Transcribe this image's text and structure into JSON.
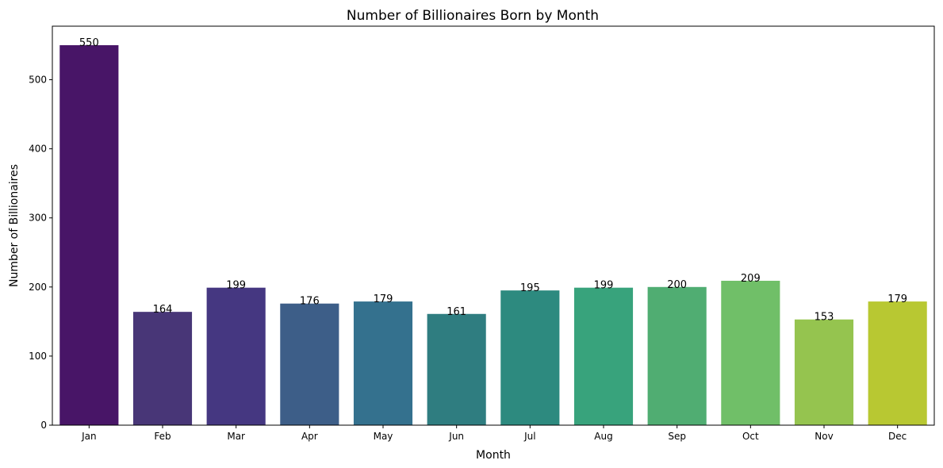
{
  "chart_data": {
    "type": "bar",
    "title": "Number of Billionaires Born by Month",
    "xlabel": "Month",
    "ylabel": "Number of Billionaires",
    "categories": [
      "Jan",
      "Feb",
      "Mar",
      "Apr",
      "May",
      "Jun",
      "Jul",
      "Aug",
      "Sep",
      "Oct",
      "Nov",
      "Dec"
    ],
    "values": [
      550,
      164,
      199,
      176,
      179,
      161,
      195,
      199,
      200,
      209,
      153,
      179
    ],
    "colors": [
      "#481567",
      "#483677",
      "#453781",
      "#3d5e88",
      "#34718e",
      "#2f7d80",
      "#2d8a7f",
      "#38a37c",
      "#50ad72",
      "#70bf68",
      "#95c44f",
      "#b8c832"
    ],
    "ylim": [
      0,
      577.5
    ],
    "yticks": [
      0,
      100,
      200,
      300,
      400,
      500
    ],
    "grid": false,
    "legend": "none"
  }
}
